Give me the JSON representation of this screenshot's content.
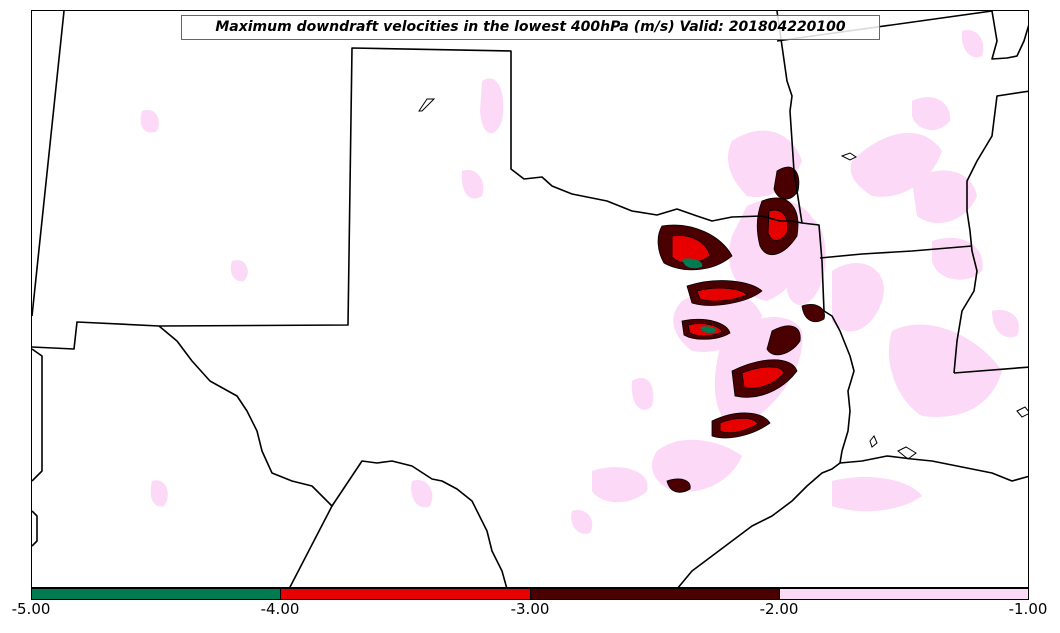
{
  "title": "Maximum downdraft velocities in the lowest 400hPa (m/s) Valid: 201804220100",
  "colorbar": {
    "colors": [
      "#007a50",
      "#e60000",
      "#4a0000",
      "#fcd9f7"
    ],
    "tick_labels": [
      "-5.00",
      "-4.00",
      "-3.00",
      "-2.00",
      "-1.00"
    ]
  },
  "map": {
    "land_color": "#ffffff",
    "border_color": "#000000",
    "light_field_color": "#fcd9f7"
  }
}
